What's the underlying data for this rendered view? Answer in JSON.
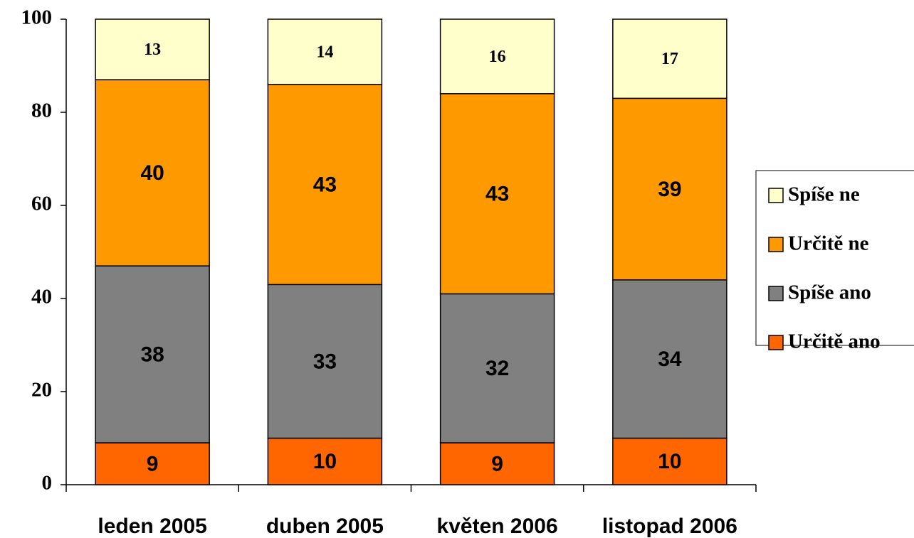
{
  "chart_data": {
    "type": "stacked_bar",
    "categories": [
      "leden 2005",
      "duben 2005",
      "květen 2006",
      "listopad 2006"
    ],
    "series": [
      {
        "name": "Určitě ano",
        "color": "#ff6600",
        "values": [
          9,
          10,
          9,
          10
        ]
      },
      {
        "name": "Spíše ano",
        "color": "#808080",
        "values": [
          38,
          33,
          32,
          34
        ]
      },
      {
        "name": "Určitě ne",
        "color": "#ff9900",
        "values": [
          40,
          43,
          43,
          39
        ]
      },
      {
        "name": "Spíše ne",
        "color": "#ffffcc",
        "values": [
          13,
          14,
          16,
          17
        ]
      }
    ],
    "ylim": [
      0,
      100
    ],
    "yticks": [
      0,
      20,
      40,
      60,
      80,
      100
    ],
    "legend": "right"
  }
}
